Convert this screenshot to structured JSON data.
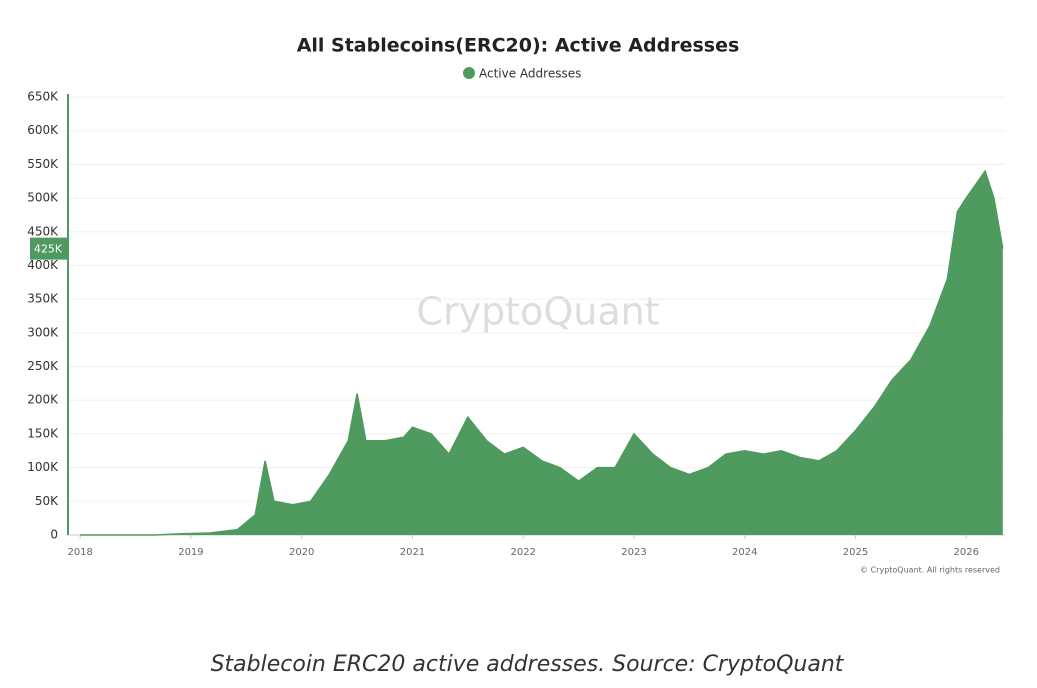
{
  "chart_data": {
    "type": "area",
    "title": "All Stablecoins(ERC20): Active Addresses",
    "watermark": "CryptoQuant",
    "copyright": "© CryptoQuant. All rights reserved",
    "caption": "Stablecoin ERC20 active addresses. Source: CryptoQuant",
    "current_value": {
      "value": 425000,
      "label": "425K"
    },
    "legend": "top",
    "grid": true,
    "x": [
      2018.0,
      2018.33,
      2018.67,
      2018.92,
      2019.17,
      2019.42,
      2019.58,
      2019.67,
      2019.75,
      2019.92,
      2020.08,
      2020.25,
      2020.42,
      2020.5,
      2020.58,
      2020.75,
      2020.92,
      2021.0,
      2021.17,
      2021.33,
      2021.5,
      2021.67,
      2021.83,
      2022.0,
      2022.17,
      2022.33,
      2022.5,
      2022.67,
      2022.83,
      2023.0,
      2023.17,
      2023.33,
      2023.5,
      2023.67,
      2023.83,
      2024.0,
      2024.17,
      2024.33,
      2024.5,
      2024.67,
      2024.83,
      2025.0,
      2025.17,
      2025.33,
      2025.5,
      2025.67,
      2025.83,
      2025.92,
      2026.0,
      2026.17,
      2026.25,
      2026.33
    ],
    "series": [
      {
        "name": "Active Addresses",
        "color": "#4e9a5f",
        "values": [
          0,
          0,
          0,
          2000,
          3000,
          8000,
          30000,
          110000,
          50000,
          45000,
          50000,
          90000,
          140000,
          210000,
          140000,
          140000,
          145000,
          160000,
          150000,
          120000,
          175000,
          140000,
          120000,
          130000,
          110000,
          100000,
          80000,
          100000,
          100000,
          150000,
          120000,
          100000,
          90000,
          100000,
          120000,
          125000,
          120000,
          125000,
          115000,
          110000,
          125000,
          155000,
          190000,
          230000,
          260000,
          310000,
          380000,
          480000,
          500000,
          540000,
          500000,
          425000
        ]
      }
    ],
    "xlim": [
      2017.89,
      2026.35
    ],
    "xticks": [
      2018,
      2019,
      2020,
      2021,
      2022,
      2023,
      2024,
      2025,
      2026
    ],
    "ylim": [
      0,
      650000
    ],
    "yticks": [
      0,
      {
        "value": 50000,
        "label": "50K"
      },
      {
        "value": 100000,
        "label": "100K"
      },
      {
        "value": 150000,
        "label": "150K"
      },
      {
        "value": 200000,
        "label": "200K"
      },
      {
        "value": 250000,
        "label": "250K"
      },
      {
        "value": 300000,
        "label": "300K"
      },
      {
        "value": 350000,
        "label": "350K"
      },
      {
        "value": 400000,
        "label": "400K"
      },
      {
        "value": 450000,
        "label": "450K"
      },
      {
        "value": 500000,
        "label": "500K"
      },
      {
        "value": 550000,
        "label": "550K"
      },
      {
        "value": 600000,
        "label": "600K"
      },
      {
        "value": 650000,
        "label": "650K"
      }
    ]
  }
}
